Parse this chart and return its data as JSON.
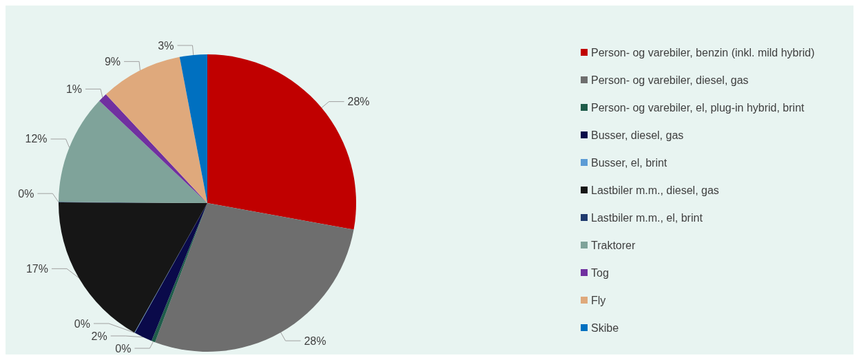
{
  "chart_data": {
    "type": "pie",
    "categories": [
      "Person- og varebiler, benzin (inkl. mild hybrid)",
      "Person- og varebiler, diesel, gas",
      "Person- og varebiler, el, plug-in hybrid, brint",
      "Busser, diesel, gas",
      "Busser, el, brint",
      "Lastbiler m.m., diesel, gas",
      "Lastbiler m.m., el, brint",
      "Traktorer",
      "Tog",
      "Fly",
      "Skibe"
    ],
    "values": [
      28,
      28,
      0.4,
      2,
      0.05,
      17,
      0.05,
      12,
      1,
      9,
      3
    ],
    "value_labels": [
      "28%",
      "28%",
      "0%",
      "2%",
      "0%",
      "17%",
      "0%",
      "12%",
      "1%",
      "9%",
      "3%"
    ],
    "colors": [
      "#c00000",
      "#6e6e6e",
      "#1f5c4a",
      "#0a0a4a",
      "#5b9bd5",
      "#161616",
      "#1f3a6e",
      "#7fa39a",
      "#7030a0",
      "#dfa97c",
      "#0070c0"
    ],
    "legend": "right"
  }
}
